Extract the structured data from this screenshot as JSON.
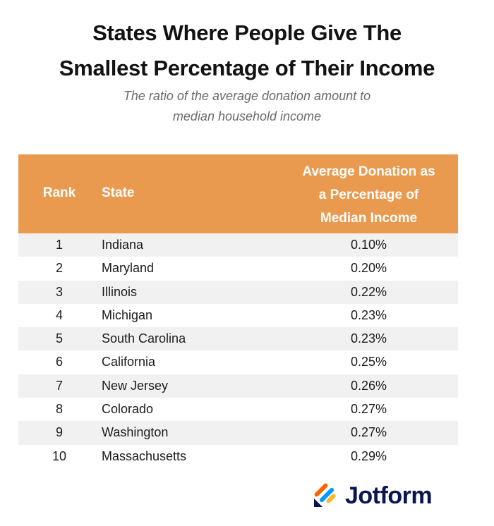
{
  "title_line1": "States Where People Give The",
  "title_line2": "Smallest Percentage of Their Income",
  "subtitle_line1": "The ratio of the average donation amount to",
  "subtitle_line2": "median household income",
  "header": {
    "rank": "Rank",
    "state": "State",
    "pct_line1": "Average Donation as",
    "pct_line2": "a Percentage of",
    "pct_line3": "Median Income"
  },
  "colors": {
    "header_bg": "#ea9a4f",
    "stripe": "#f1f1f2",
    "brand": "#0a1551"
  },
  "brand": {
    "name": "Jotform",
    "logo_icon": "jotform-logo-icon"
  },
  "chart_data": {
    "type": "table",
    "title": "States Where People Give The Smallest Percentage of Their Income",
    "subtitle": "The ratio of the average donation amount to median household income",
    "columns": [
      "Rank",
      "State",
      "Average Donation as a Percentage of Median Income"
    ],
    "rows": [
      {
        "rank": "1",
        "state": "Indiana",
        "pct": "0.10%"
      },
      {
        "rank": "2",
        "state": "Maryland",
        "pct": "0.20%"
      },
      {
        "rank": "3",
        "state": "Illinois",
        "pct": "0.22%"
      },
      {
        "rank": "4",
        "state": "Michigan",
        "pct": "0.23%"
      },
      {
        "rank": "5",
        "state": "South Carolina",
        "pct": "0.23%"
      },
      {
        "rank": "6",
        "state": "California",
        "pct": "0.25%"
      },
      {
        "rank": "7",
        "state": "New Jersey",
        "pct": "0.26%"
      },
      {
        "rank": "8",
        "state": "Colorado",
        "pct": "0.27%"
      },
      {
        "rank": "9",
        "state": "Washington",
        "pct": "0.27%"
      },
      {
        "rank": "10",
        "state": "Massachusetts",
        "pct": "0.29%"
      }
    ]
  }
}
